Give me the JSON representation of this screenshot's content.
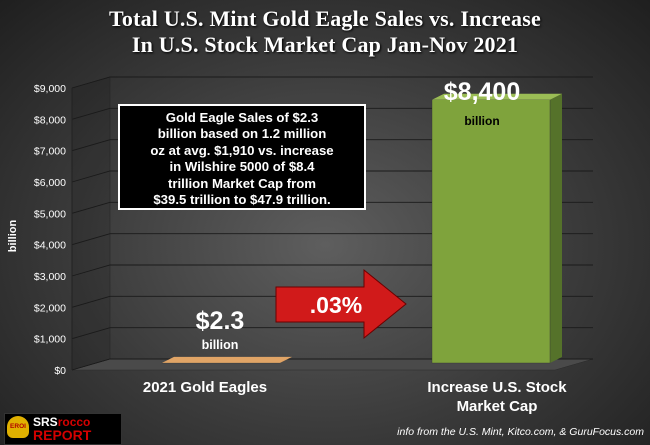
{
  "title_line1": "Total U.S. Mint Gold Eagle Sales vs. Increase",
  "title_line2": "In U.S. Stock Market Cap Jan-Nov 2021",
  "annotation_box": {
    "lines": [
      "Gold Eagle Sales of $2.3",
      "billion based on 1.2 million",
      "oz at avg. $1,910 vs. increase",
      "in Wilshire 5000 of $8.4",
      "trillion Market Cap from",
      "$39.5 trillion to $47.9 trillion."
    ]
  },
  "arrow_label": ".03%",
  "logo": {
    "top_a": "SRS",
    "top_b": "rocco",
    "bottom": "REPORT",
    "mark": "EROI"
  },
  "source_credit": "info from the U.S. Mint, Kitco.com, & GuruFocus.com",
  "colors": {
    "gold_bar": "#c9853c",
    "stock_bar": "#7fa33c",
    "arrow": "#d11a1a",
    "text": "#ffffff"
  },
  "chart_data": {
    "type": "bar",
    "categories": [
      [
        "2021 Gold Eagles"
      ],
      [
        "Increase U.S. Stock",
        "Market Cap"
      ]
    ],
    "values": [
      2.3,
      8400
    ],
    "value_labels": [
      "$2.3",
      "$8,400"
    ],
    "value_units": [
      "billion",
      "billion"
    ],
    "ylabel": "billion",
    "ylim": [
      0,
      9000
    ],
    "yticks": [
      0,
      1000,
      2000,
      3000,
      4000,
      5000,
      6000,
      7000,
      8000,
      9000
    ],
    "ytick_labels": [
      "$0",
      "$1,000",
      "$2,000",
      "$3,000",
      "$4,000",
      "$5,000",
      "$6,000",
      "$7,000",
      "$8,000",
      "$9,000"
    ],
    "grid": true,
    "legend": "none",
    "style": "3d"
  }
}
